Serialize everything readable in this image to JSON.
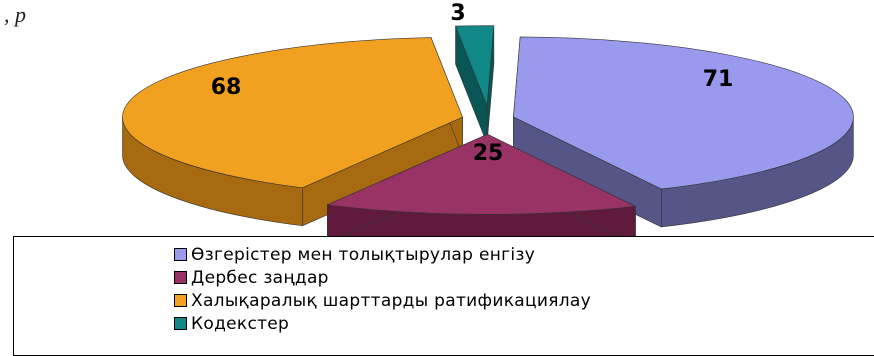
{
  "header_fragment": ", р",
  "chart_data": {
    "type": "pie",
    "style": "3d-exploded",
    "title": "",
    "categories": [
      "Өзгерістер мен толықтырулар енгізу",
      "Дербес заңдар",
      "Халықаралық шарттарды ратификациялау",
      "Кодекстер"
    ],
    "values": [
      71,
      25,
      68,
      3
    ],
    "data_labels": [
      "71",
      "25",
      "68",
      "3"
    ],
    "colors": [
      "#9999ee",
      "#993366",
      "#f2a020",
      "#118888"
    ],
    "side_colors": [
      "#555588",
      "#601a3c",
      "#a86a10",
      "#0a5555"
    ],
    "legend_position": "bottom"
  }
}
